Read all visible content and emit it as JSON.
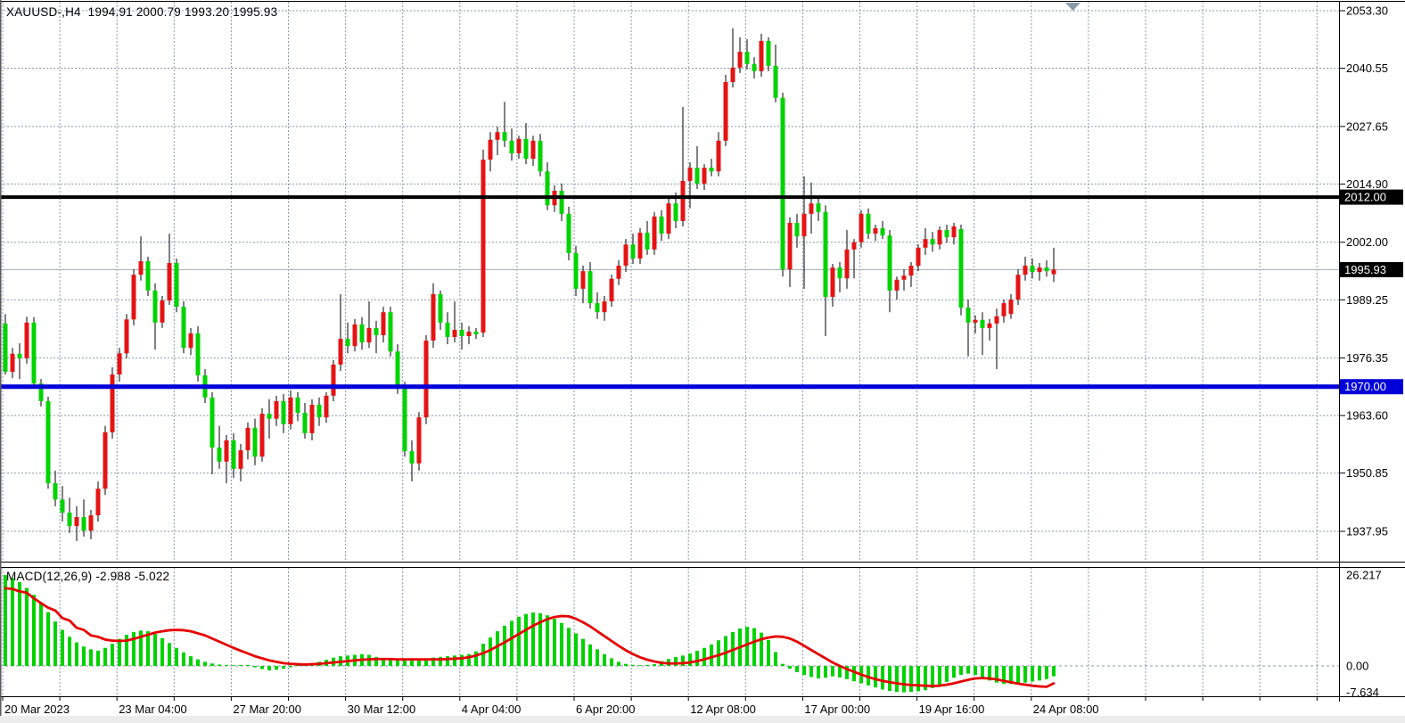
{
  "window": {
    "title_text": "XAUUSD-,H4  1994.91 2000.79 1993.20 1995.93",
    "symbol": "XAUUSD-",
    "timeframe": "H4",
    "ohlc": {
      "open": "1994.91",
      "high": "2000.79",
      "low": "1993.20",
      "close": "1995.93"
    }
  },
  "macd_pane": {
    "label": "MACD(12,26,9) -2.988 -5.022",
    "indicator": "MACD",
    "params": "12,26,9",
    "value_main": "-2.988",
    "value_signal": "-5.022",
    "axis_labels": [
      "26.217",
      "0.00",
      "-7.634"
    ]
  },
  "colors": {
    "up_candle": "#e41414",
    "down_candle": "#00d300",
    "wick": "#000000",
    "grid": "#8b99a9",
    "resistance_line": "#000000",
    "support_line": "#0000d8",
    "current_price_line": "#a9b2bd",
    "macd_histogram": "#00d300",
    "macd_signal": "#e60000",
    "badge_text": "#ffffff"
  },
  "chart_data": {
    "type": "candlestick",
    "title": "XAUUSD-,H4",
    "legend_position": "top-left",
    "grid": true,
    "price_axis_ticks": [
      2053.3,
      2040.55,
      2027.65,
      2014.9,
      2002.0,
      1989.25,
      1976.35,
      1963.6,
      1950.85,
      1937.95
    ],
    "time_labels": [
      "20 Mar 2023",
      "23 Mar 04:00",
      "27 Mar 20:00",
      "30 Mar 12:00",
      "4 Apr 04:00",
      "6 Apr 20:00",
      "12 Apr 08:00",
      "17 Apr 00:00",
      "19 Apr 16:00",
      "24 Apr 08:00"
    ],
    "hlines": [
      {
        "label": "2012.00",
        "price": 2012.0,
        "color": "#000000",
        "width": 4
      },
      {
        "label": "1970.00",
        "price": 1970.0,
        "color": "#0000d8",
        "width": 5
      }
    ],
    "current_price": {
      "label": "1995.93",
      "value": 1995.93
    },
    "candles": [
      [
        1984.0,
        1986.1,
        1972.7,
        1973.3
      ],
      [
        1973.3,
        1978.6,
        1971.9,
        1977.3
      ],
      [
        1977.3,
        1979.6,
        1971.7,
        1976.3
      ],
      [
        1976.3,
        1985.5,
        1975.1,
        1984.2
      ],
      [
        1984.2,
        1985.4,
        1969.6,
        1970.7
      ],
      [
        1970.7,
        1971.7,
        1965.6,
        1966.8
      ],
      [
        1966.8,
        1967.8,
        1947.4,
        1948.6
      ],
      [
        1948.6,
        1951.4,
        1943.5,
        1945.0
      ],
      [
        1945.0,
        1948.0,
        1940.1,
        1942.1
      ],
      [
        1942.1,
        1945.4,
        1937.6,
        1939.1
      ],
      [
        1939.1,
        1943.5,
        1935.8,
        1941.1
      ],
      [
        1941.1,
        1945.0,
        1936.8,
        1938.1
      ],
      [
        1938.1,
        1942.7,
        1936.2,
        1941.5
      ],
      [
        1941.5,
        1949.0,
        1940.1,
        1947.4
      ],
      [
        1947.4,
        1961.3,
        1946.0,
        1959.9
      ],
      [
        1959.9,
        1974.3,
        1958.5,
        1972.7
      ],
      [
        1972.7,
        1978.6,
        1971.1,
        1977.4
      ],
      [
        1977.4,
        1986.1,
        1976.3,
        1984.9
      ],
      [
        1984.9,
        1996.0,
        1983.6,
        1994.8
      ],
      [
        1994.8,
        2003.3,
        1993.5,
        1997.8
      ],
      [
        1997.8,
        1998.8,
        1990.1,
        1991.3
      ],
      [
        1991.3,
        1992.9,
        1978.2,
        1984.2
      ],
      [
        1984.2,
        1990.1,
        1983.0,
        1989.1
      ],
      [
        1989.1,
        2003.9,
        1988.1,
        1997.4
      ],
      [
        1997.4,
        1998.4,
        1986.5,
        1987.7
      ],
      [
        1987.7,
        1988.9,
        1977.4,
        1978.6
      ],
      [
        1978.6,
        1983.0,
        1977.0,
        1981.8
      ],
      [
        1981.8,
        1983.4,
        1971.1,
        1972.5
      ],
      [
        1972.5,
        1973.9,
        1966.4,
        1967.6
      ],
      [
        1967.6,
        1968.8,
        1950.6,
        1956.5
      ],
      [
        1956.5,
        1961.3,
        1951.8,
        1953.4
      ],
      [
        1953.4,
        1959.3,
        1948.6,
        1958.1
      ],
      [
        1958.1,
        1959.7,
        1949.8,
        1951.8
      ],
      [
        1951.8,
        1957.3,
        1949.0,
        1955.9
      ],
      [
        1955.9,
        1962.1,
        1953.9,
        1960.9
      ],
      [
        1960.9,
        1962.9,
        1952.6,
        1954.5
      ],
      [
        1954.5,
        1965.2,
        1953.4,
        1964.0
      ],
      [
        1964.0,
        1967.2,
        1958.5,
        1962.9
      ],
      [
        1962.9,
        1968.0,
        1961.3,
        1966.8
      ],
      [
        1966.8,
        1968.4,
        1959.7,
        1961.7
      ],
      [
        1961.7,
        1969.2,
        1960.5,
        1967.6
      ],
      [
        1967.6,
        1968.8,
        1962.4,
        1964.2
      ],
      [
        1964.2,
        1966.4,
        1958.5,
        1959.7
      ],
      [
        1959.7,
        1967.2,
        1958.1,
        1966.0
      ],
      [
        1966.0,
        1967.6,
        1961.3,
        1963.2
      ],
      [
        1963.2,
        1968.8,
        1962.0,
        1968.0
      ],
      [
        1968.0,
        1975.9,
        1966.8,
        1974.9
      ],
      [
        1974.9,
        1990.5,
        1973.5,
        1980.6
      ],
      [
        1980.6,
        1984.2,
        1977.4,
        1979.0
      ],
      [
        1979.0,
        1985.0,
        1977.8,
        1983.8
      ],
      [
        1983.8,
        1985.4,
        1978.2,
        1979.8
      ],
      [
        1979.8,
        1988.9,
        1978.6,
        1983.0
      ],
      [
        1983.0,
        1984.6,
        1977.4,
        1981.4
      ],
      [
        1981.4,
        1987.7,
        1979.8,
        1986.5
      ],
      [
        1986.5,
        1987.7,
        1976.7,
        1977.8
      ],
      [
        1977.8,
        1979.4,
        1968.4,
        1969.8
      ],
      [
        1969.8,
        1971.1,
        1954.5,
        1955.7
      ],
      [
        1955.7,
        1958.1,
        1949.0,
        1953.0
      ],
      [
        1953.0,
        1964.4,
        1951.4,
        1963.2
      ],
      [
        1963.2,
        1981.4,
        1961.7,
        1980.2
      ],
      [
        1980.2,
        1992.9,
        1978.6,
        1990.5
      ],
      [
        1990.5,
        1991.3,
        1982.6,
        1984.2
      ],
      [
        1984.2,
        1986.5,
        1979.4,
        1981.0
      ],
      [
        1981.0,
        1988.9,
        1979.8,
        1982.6
      ],
      [
        1982.6,
        1984.2,
        1978.2,
        1981.2
      ],
      [
        1981.2,
        1983.4,
        1979.4,
        1982.2
      ],
      [
        1982.2,
        1983.0,
        1980.6,
        1981.6
      ],
      [
        1982.0,
        2022.5,
        1981.0,
        2020.3
      ],
      [
        2020.3,
        2026.4,
        2017.7,
        2024.7
      ],
      [
        2024.7,
        2027.6,
        2021.3,
        2026.4
      ],
      [
        2026.4,
        2033.1,
        2023.1,
        2024.5
      ],
      [
        2024.5,
        2027.2,
        2020.1,
        2021.7
      ],
      [
        2021.7,
        2025.6,
        2020.5,
        2024.9
      ],
      [
        2024.9,
        2028.4,
        2019.3,
        2020.5
      ],
      [
        2020.5,
        2025.6,
        2018.9,
        2024.5
      ],
      [
        2024.5,
        2026.0,
        2016.6,
        2017.7
      ],
      [
        2017.7,
        2019.7,
        2009.1,
        2010.2
      ],
      [
        2010.2,
        2014.6,
        2008.7,
        2013.4
      ],
      [
        2013.4,
        2015.0,
        2006.7,
        2008.3
      ],
      [
        2008.3,
        2009.9,
        1998.0,
        1999.6
      ],
      [
        1999.6,
        2001.2,
        1990.1,
        1991.7
      ],
      [
        1991.7,
        1996.8,
        1988.5,
        1995.6
      ],
      [
        1995.6,
        1997.6,
        1987.3,
        1988.5
      ],
      [
        1988.5,
        1990.9,
        1985.0,
        1986.5
      ],
      [
        1986.5,
        1990.1,
        1984.6,
        1988.9
      ],
      [
        1988.9,
        1994.8,
        1987.7,
        1993.9
      ],
      [
        1993.9,
        1998.0,
        1992.5,
        1996.8
      ],
      [
        1996.8,
        2002.7,
        1995.4,
        2001.5
      ],
      [
        2001.5,
        2003.9,
        1997.2,
        1998.4
      ],
      [
        1998.4,
        2005.1,
        1997.2,
        2004.1
      ],
      [
        2004.1,
        2006.7,
        1999.2,
        2000.4
      ],
      [
        2000.4,
        2008.7,
        1999.2,
        2007.7
      ],
      [
        2007.7,
        2009.1,
        2002.3,
        2003.9
      ],
      [
        2003.9,
        2011.8,
        2002.7,
        2010.6
      ],
      [
        2010.6,
        2013.0,
        2005.1,
        2006.7
      ],
      [
        2006.7,
        2032.0,
        2005.5,
        2015.6
      ],
      [
        2015.6,
        2019.7,
        2009.5,
        2018.5
      ],
      [
        2018.5,
        2023.3,
        2013.8,
        2015.0
      ],
      [
        2015.0,
        2019.3,
        2013.6,
        2018.5
      ],
      [
        2018.5,
        2020.5,
        2016.6,
        2017.7
      ],
      [
        2017.7,
        2026.4,
        2016.6,
        2024.5
      ],
      [
        2024.5,
        2039.1,
        2023.3,
        2037.5
      ],
      [
        2037.5,
        2049.4,
        2036.3,
        2040.7
      ],
      [
        2040.7,
        2047.4,
        2039.5,
        2044.2
      ],
      [
        2044.2,
        2047.0,
        2040.3,
        2041.5
      ],
      [
        2041.5,
        2043.0,
        2038.3,
        2039.9
      ],
      [
        2039.9,
        2048.2,
        2038.7,
        2046.6
      ],
      [
        2046.6,
        2047.4,
        2039.9,
        2041.1
      ],
      [
        2041.1,
        2045.8,
        2033.0,
        2034.0
      ],
      [
        2034.0,
        2035.1,
        1994.4,
        1996.0
      ],
      [
        1996.0,
        2007.5,
        1992.1,
        2006.3
      ],
      [
        2006.3,
        2008.3,
        2000.8,
        2003.3
      ],
      [
        2003.3,
        2016.6,
        1991.7,
        2008.3
      ],
      [
        2008.3,
        2015.2,
        2003.9,
        2010.6
      ],
      [
        2010.6,
        2012.2,
        2006.7,
        2008.7
      ],
      [
        2008.7,
        2010.2,
        1981.2,
        1989.9
      ],
      [
        1989.9,
        1997.2,
        1987.7,
        1996.4
      ],
      [
        1996.4,
        1997.6,
        1990.9,
        1994.0
      ],
      [
        1994.0,
        2004.7,
        1991.7,
        2000.4
      ],
      [
        2000.4,
        2002.7,
        1994.0,
        2002.0
      ],
      [
        2002.0,
        2009.1,
        2000.8,
        2008.3
      ],
      [
        2008.3,
        2009.5,
        2002.7,
        2003.9
      ],
      [
        2003.9,
        2005.9,
        2002.3,
        2005.1
      ],
      [
        2005.1,
        2006.7,
        2002.7,
        2003.5
      ],
      [
        2003.5,
        2004.7,
        1986.5,
        1991.3
      ],
      [
        1991.3,
        1994.4,
        1989.3,
        1993.7
      ],
      [
        1993.7,
        1996.0,
        1991.3,
        1994.6
      ],
      [
        1994.6,
        1997.6,
        1992.1,
        1996.8
      ],
      [
        1996.8,
        2001.5,
        1995.6,
        2000.8
      ],
      [
        2000.8,
        2005.1,
        1999.2,
        2002.7
      ],
      [
        2002.7,
        2004.3,
        1999.9,
        2001.5
      ],
      [
        2001.5,
        2005.5,
        2000.4,
        2004.7
      ],
      [
        2004.7,
        2005.9,
        2001.9,
        2003.1
      ],
      [
        2003.1,
        2006.3,
        2001.5,
        2005.5
      ],
      [
        2004.9,
        2005.9,
        1985.8,
        1987.5
      ],
      [
        1987.5,
        1989.3,
        1976.7,
        1984.2
      ],
      [
        1984.2,
        1985.8,
        1981.8,
        1984.8
      ],
      [
        1984.8,
        1986.5,
        1977.0,
        1983.0
      ],
      [
        1983.0,
        1985.0,
        1980.2,
        1984.0
      ],
      [
        1984.0,
        1987.3,
        1973.9,
        1985.6
      ],
      [
        1985.6,
        1989.3,
        1984.2,
        1988.5
      ],
      [
        1986.1,
        1990.5,
        1985.0,
        1989.3
      ],
      [
        1989.3,
        1996.0,
        1988.1,
        1994.8
      ],
      [
        1994.8,
        1998.8,
        1993.5,
        1996.8
      ],
      [
        1996.8,
        1998.4,
        1994.0,
        1995.4
      ],
      [
        1995.4,
        1997.4,
        1993.5,
        1996.4
      ],
      [
        1996.4,
        1998.0,
        1994.4,
        1995.6
      ],
      [
        1994.91,
        2000.79,
        1993.2,
        1995.93
      ]
    ],
    "macd": {
      "scale_max": 26.217,
      "scale_min": -7.634,
      "histogram": [
        26.2,
        25.3,
        24.2,
        22.5,
        20.5,
        18.2,
        15.5,
        12.8,
        10.4,
        8.4,
        6.8,
        5.6,
        4.8,
        4.4,
        5.2,
        6.4,
        7.8,
        9.0,
        9.8,
        10.2,
        10.0,
        9.2,
        8.0,
        6.6,
        5.2,
        3.9,
        2.8,
        1.9,
        1.2,
        0.7,
        0.4,
        0.3,
        0.2,
        0.3,
        0.3,
        -0.4,
        -0.9,
        -1.3,
        -1.1,
        -0.8,
        -0.4,
        0.2,
        0.5,
        0.8,
        1.2,
        1.8,
        2.4,
        2.8,
        3.0,
        3.2,
        3.4,
        3.2,
        2.6,
        2.2,
        2.0,
        1.8,
        1.7,
        1.6,
        1.7,
        2.0,
        2.4,
        2.6,
        2.8,
        3.0,
        3.2,
        3.4,
        4.2,
        6.4,
        8.2,
        10.0,
        11.6,
        13.0,
        14.2,
        15.0,
        15.4,
        15.2,
        14.6,
        13.6,
        12.4,
        11.0,
        9.4,
        7.8,
        6.2,
        4.8,
        3.4,
        2.2,
        1.2,
        0.6,
        0.3,
        0.2,
        0.3,
        0.5,
        1.4,
        2.0,
        2.6,
        3.0,
        3.6,
        4.4,
        5.2,
        6.2,
        7.4,
        8.6,
        9.8,
        10.8,
        11.3,
        10.9,
        9.6,
        7.5,
        4.0,
        0.6,
        -0.8,
        -1.8,
        -2.6,
        -3.2,
        -3.6,
        -3.4,
        -3.0,
        -3.3,
        -3.8,
        -4.4,
        -5.0,
        -5.6,
        -6.2,
        -6.8,
        -7.2,
        -7.5,
        -7.6,
        -7.5,
        -7.3,
        -7.0,
        -6.4,
        -5.6,
        -4.6,
        -3.4,
        -2.6,
        -2.2,
        -2.6,
        -3.4,
        -4.2,
        -4.8,
        -5.2,
        -5.2,
        -5.0,
        -4.8,
        -4.5,
        -4.2,
        -3.8,
        -2.988
      ],
      "signal": [
        22.4,
        22.2,
        21.5,
        21.1,
        19.5,
        18.1,
        16.8,
        16.0,
        13.8,
        13.1,
        11.0,
        10.4,
        8.8,
        8.4,
        7.6,
        7.3,
        7.2,
        7.3,
        7.8,
        8.4,
        9.0,
        9.6,
        10.0,
        10.3,
        10.4,
        10.3,
        10.0,
        9.4,
        8.8,
        7.9,
        7.0,
        6.1,
        5.2,
        4.4,
        3.6,
        2.8,
        2.2,
        1.6,
        1.2,
        0.8,
        0.6,
        0.5,
        0.4,
        0.5,
        0.6,
        0.8,
        1.0,
        1.2,
        1.4,
        1.6,
        1.8,
        1.9,
        2.0,
        2.0,
        2.0,
        1.9,
        1.9,
        1.9,
        1.9,
        1.9,
        1.9,
        1.9,
        2.0,
        2.1,
        2.2,
        2.5,
        3.0,
        3.7,
        4.6,
        5.7,
        6.8,
        8.0,
        9.2,
        10.4,
        11.6,
        12.6,
        13.5,
        14.1,
        14.4,
        14.3,
        13.6,
        12.6,
        11.4,
        10.0,
        8.6,
        7.2,
        5.8,
        4.5,
        3.4,
        2.5,
        1.8,
        1.3,
        0.9,
        0.7,
        0.7,
        0.8,
        1.0,
        1.4,
        1.9,
        2.5,
        3.1,
        3.8,
        4.6,
        5.4,
        6.2,
        7.0,
        7.7,
        8.2,
        8.5,
        8.4,
        7.9,
        7.0,
        5.8,
        4.6,
        3.4,
        2.2,
        1.0,
        0.0,
        -0.9,
        -1.7,
        -2.5,
        -3.2,
        -3.8,
        -4.3,
        -4.7,
        -5.0,
        -5.3,
        -5.5,
        -5.6,
        -5.7,
        -5.8,
        -5.7,
        -5.4,
        -5.0,
        -4.5,
        -4.0,
        -3.6,
        -3.5,
        -3.6,
        -3.9,
        -4.3,
        -4.7,
        -5.1,
        -5.4,
        -5.7,
        -5.9,
        -6.0,
        -5.022
      ]
    }
  }
}
